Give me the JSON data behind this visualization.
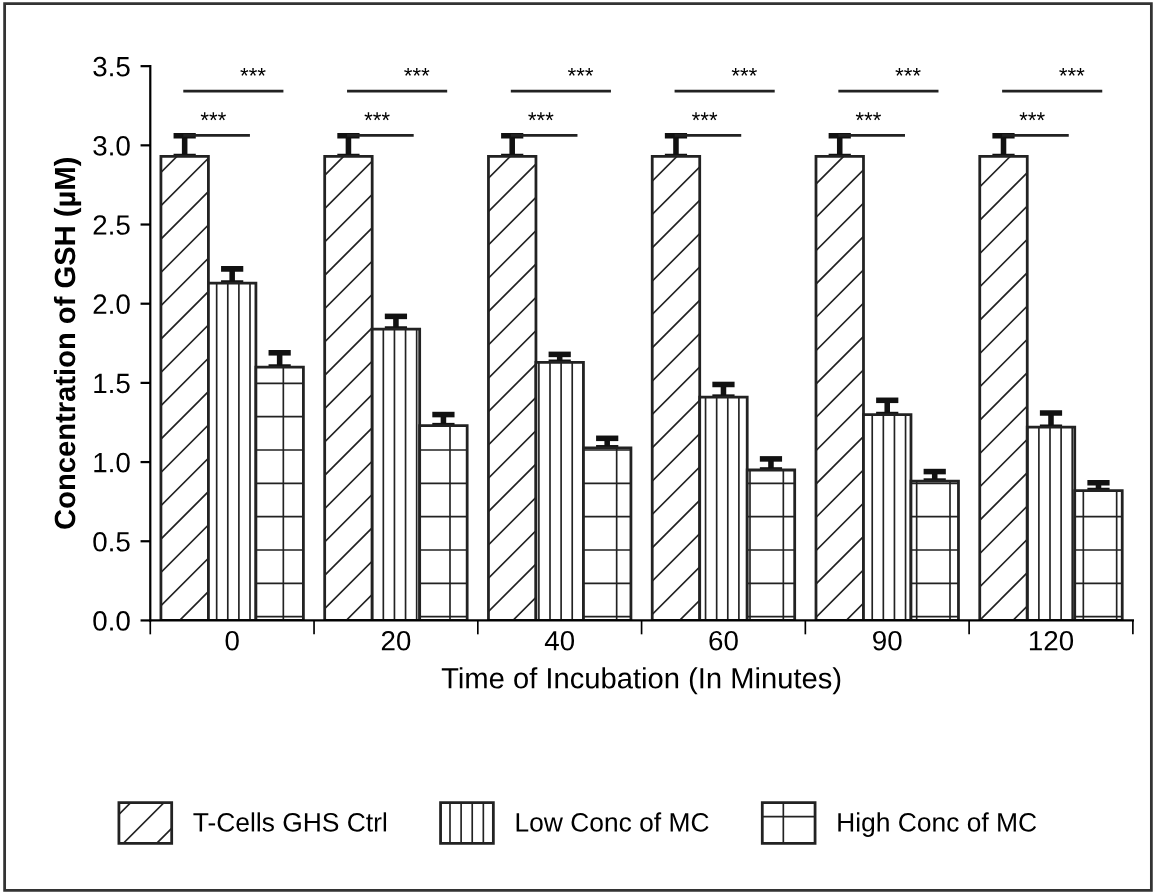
{
  "chart_data": {
    "type": "bar",
    "xlabel": "Time of Incubation (In Minutes)",
    "ylabel": "Concentration of GSH (µM)",
    "categories": [
      "0",
      "20",
      "40",
      "60",
      "90",
      "120"
    ],
    "series": [
      {
        "name": "T-Cells GHS Ctrl",
        "color": "#222222",
        "values": [
          2.93,
          2.93,
          2.93,
          2.93,
          2.93,
          2.93
        ],
        "errors": [
          [
            2.93,
            3.06
          ],
          [
            2.93,
            3.06
          ],
          [
            2.93,
            3.06
          ],
          [
            2.93,
            3.06
          ],
          [
            2.93,
            3.06
          ],
          [
            2.93,
            3.06
          ]
        ]
      },
      {
        "name": "Low Conc of MC",
        "color": "#222222",
        "values": [
          2.13,
          1.84,
          1.63,
          1.41,
          1.3,
          1.22
        ],
        "errors": [
          [
            2.13,
            2.22
          ],
          [
            1.84,
            1.92
          ],
          [
            1.63,
            1.68
          ],
          [
            1.41,
            1.49
          ],
          [
            1.3,
            1.39
          ],
          [
            1.22,
            1.31
          ]
        ]
      },
      {
        "name": "High Conc of MC",
        "color": "#222222",
        "values": [
          1.6,
          1.23,
          1.09,
          0.95,
          0.88,
          0.82
        ],
        "errors": [
          [
            1.6,
            1.69
          ],
          [
            1.23,
            1.3
          ],
          [
            1.09,
            1.15
          ],
          [
            0.95,
            1.02
          ],
          [
            0.88,
            0.94
          ],
          [
            0.82,
            0.87
          ]
        ]
      }
    ],
    "ylim": [
      0,
      3.5
    ],
    "yticks": [
      {
        "value": 0,
        "label": "0.0"
      },
      0.5,
      {
        "value": 1,
        "label": "1.0"
      },
      1.5,
      {
        "value": 2,
        "label": "2.0"
      },
      2.5,
      {
        "value": 3,
        "label": "3.0"
      },
      3.5
    ],
    "annotations": [
      "***",
      "***",
      "***",
      "***",
      "***",
      "***",
      "***",
      "***",
      "***",
      "***",
      "***",
      "***"
    ],
    "legend": "bottom",
    "grid": false
  }
}
